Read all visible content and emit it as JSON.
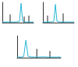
{
  "chart_data": [
    {
      "type": "line",
      "tick_labels": false,
      "xlim": [
        0,
        20
      ],
      "ylim": [
        0,
        100
      ],
      "x": [
        0,
        2,
        4,
        6,
        8,
        10,
        11,
        12,
        13,
        14,
        16,
        18,
        20
      ],
      "series": [
        {
          "type": "line",
          "color": "#29b6d6",
          "values": [
            3,
            3,
            4,
            3,
            3,
            4,
            6,
            95,
            8,
            4,
            3,
            3,
            3
          ]
        },
        {
          "type": "bar",
          "color": "#222222",
          "x": [
            5,
            14,
            17
          ],
          "values": [
            40,
            30,
            35
          ]
        }
      ]
    },
    {
      "type": "line",
      "tick_labels": false,
      "xlim": [
        0,
        20
      ],
      "ylim": [
        0,
        100
      ],
      "x": [
        0,
        2,
        4,
        6,
        7,
        8,
        9,
        10,
        12,
        14,
        16,
        18,
        20
      ],
      "series": [
        {
          "type": "line",
          "color": "#29b6d6",
          "values": [
            3,
            3,
            3,
            4,
            6,
            90,
            7,
            4,
            3,
            3,
            4,
            3,
            3
          ]
        },
        {
          "type": "bar",
          "color": "#222222",
          "x": [
            3,
            13
          ],
          "values": [
            35,
            45
          ]
        }
      ]
    },
    {
      "type": "line",
      "tick_labels": false,
      "xlim": [
        0,
        20
      ],
      "ylim": [
        0,
        100
      ],
      "x": [
        0,
        2,
        3,
        4,
        5,
        6,
        8,
        10,
        12,
        14,
        16,
        18,
        20
      ],
      "series": [
        {
          "type": "line",
          "color": "#29b6d6",
          "values": [
            3,
            3,
            5,
            80,
            6,
            4,
            3,
            3,
            4,
            3,
            3,
            3,
            3
          ]
        },
        {
          "type": "bar",
          "color": "#222222",
          "x": [
            9,
            15
          ],
          "values": [
            40,
            30
          ]
        }
      ]
    }
  ]
}
